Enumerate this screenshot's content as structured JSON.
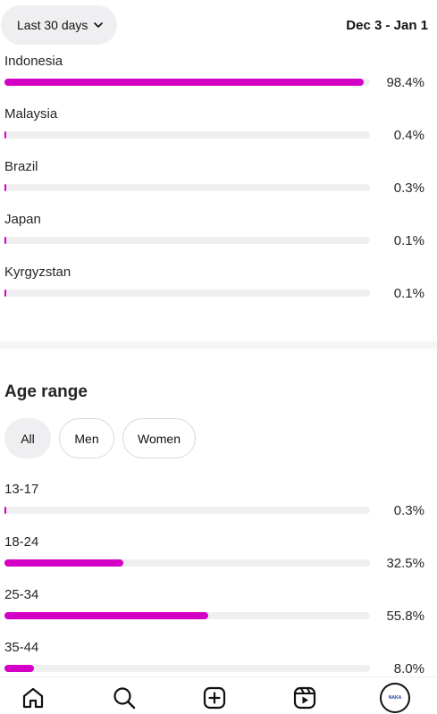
{
  "header": {
    "range_label": "Last 30 days",
    "date_range": "Dec 3 - Jan 1"
  },
  "countries": [
    {
      "label": "Indonesia",
      "value": 98.4,
      "pct": "98.4%"
    },
    {
      "label": "Malaysia",
      "value": 0.4,
      "pct": "0.4%"
    },
    {
      "label": "Brazil",
      "value": 0.3,
      "pct": "0.3%"
    },
    {
      "label": "Japan",
      "value": 0.1,
      "pct": "0.1%"
    },
    {
      "label": "Kyrgyzstan",
      "value": 0.1,
      "pct": "0.1%"
    }
  ],
  "age": {
    "title": "Age range",
    "filters": [
      {
        "label": "All",
        "active": true
      },
      {
        "label": "Men",
        "active": false
      },
      {
        "label": "Women",
        "active": false
      }
    ],
    "rows": [
      {
        "label": "13-17",
        "value": 0.3,
        "pct": "0.3%"
      },
      {
        "label": "18-24",
        "value": 32.5,
        "pct": "32.5%"
      },
      {
        "label": "25-34",
        "value": 55.8,
        "pct": "55.8%"
      },
      {
        "label": "35-44",
        "value": 8.0,
        "pct": "8.0%"
      }
    ]
  },
  "nav": {
    "avatar_text": "NAKA",
    "icons": [
      "home-icon",
      "search-icon",
      "create-icon",
      "reels-icon",
      "profile-avatar"
    ]
  },
  "colors": {
    "bar_fill": "#d400c6",
    "bar_track": "#efeff1"
  }
}
